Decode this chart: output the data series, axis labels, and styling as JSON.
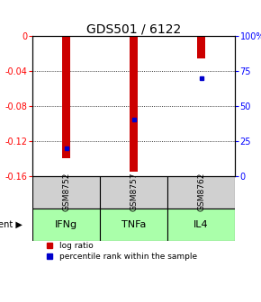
{
  "title": "GDS501 / 6122",
  "samples": [
    "GSM8752",
    "GSM8757",
    "GSM8762"
  ],
  "agents": [
    "IFNg",
    "TNFa",
    "IL4"
  ],
  "log_ratios": [
    -0.14,
    -0.155,
    -0.025
  ],
  "percentile_ranks": [
    20.0,
    40.0,
    70.0
  ],
  "left_ticks": [
    0,
    -0.04,
    -0.08,
    -0.12,
    -0.16
  ],
  "right_ticks": [
    100,
    75,
    50,
    25,
    0
  ],
  "bar_color": "#cc0000",
  "dot_color": "#0000cc",
  "agent_bg_color": "#aaffaa",
  "sample_bg_color": "#d0d0d0",
  "title_fontsize": 10,
  "tick_fontsize": 7,
  "legend_fontsize": 6.5,
  "agent_fontsize": 8,
  "sample_fontsize": 6.5,
  "bar_width": 0.12
}
